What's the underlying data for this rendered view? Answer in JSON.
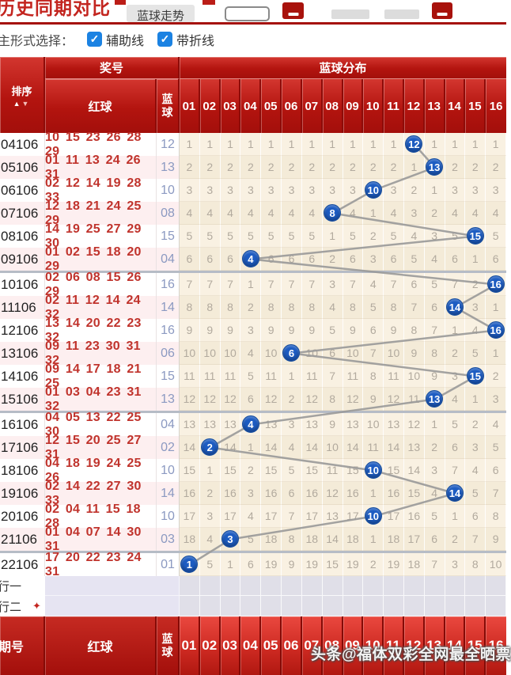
{
  "topbar": {
    "title": "历史同期对比",
    "dropdown_label": "蓝球走势"
  },
  "controls": {
    "label": "主形式选择：",
    "check_mark": "✓",
    "option1": "辅助线",
    "option2": "带折线"
  },
  "table": {
    "sort_label": "排序",
    "sort_arrows": {
      "up": "▲",
      "down": "▼"
    },
    "group_prize": "奖号",
    "group_dist": "蓝球分布",
    "col_red": "红球",
    "col_blue_top": "蓝",
    "col_blue_bottom": "球",
    "ball_numbers": [
      "01",
      "02",
      "03",
      "04",
      "05",
      "06",
      "07",
      "08",
      "09",
      "10",
      "11",
      "12",
      "13",
      "14",
      "15",
      "16"
    ],
    "rows": [
      {
        "period": "04106",
        "reds": "10 15 23 26 28 29",
        "blue": "12",
        "ball_col": 12,
        "cells": [
          "1",
          "1",
          "1",
          "1",
          "1",
          "1",
          "1",
          "1",
          "1",
          "1",
          "1",
          "12",
          "1",
          "1",
          "1",
          "1"
        ]
      },
      {
        "period": "05106",
        "reds": "01 11 13 24 26 31",
        "blue": "13",
        "ball_col": 13,
        "cells": [
          "2",
          "2",
          "2",
          "2",
          "2",
          "2",
          "2",
          "2",
          "2",
          "2",
          "2",
          "1",
          "13",
          "2",
          "2",
          "2"
        ]
      },
      {
        "period": "06106",
        "reds": "02 12 14 19 28 33",
        "blue": "10",
        "ball_col": 10,
        "cells": [
          "3",
          "3",
          "3",
          "3",
          "3",
          "3",
          "3",
          "3",
          "3",
          "10",
          "3",
          "2",
          "1",
          "3",
          "3",
          "3"
        ]
      },
      {
        "period": "07106",
        "reds": "12 18 21 24 25 29",
        "blue": "08",
        "ball_col": 8,
        "cells": [
          "4",
          "4",
          "4",
          "4",
          "4",
          "4",
          "4",
          "8",
          "4",
          "1",
          "4",
          "3",
          "2",
          "4",
          "4",
          "4"
        ]
      },
      {
        "period": "08106",
        "reds": "14 19 25 27 29 30",
        "blue": "15",
        "ball_col": 15,
        "cells": [
          "5",
          "5",
          "5",
          "5",
          "5",
          "5",
          "5",
          "1",
          "5",
          "2",
          "5",
          "4",
          "3",
          "5",
          "15",
          "5"
        ]
      },
      {
        "period": "09106",
        "reds": "01 02 15 18 20 29",
        "blue": "04",
        "ball_col": 4,
        "cells": [
          "6",
          "6",
          "6",
          "4",
          "6",
          "6",
          "6",
          "2",
          "6",
          "3",
          "6",
          "5",
          "4",
          "6",
          "1",
          "6"
        ]
      },
      {
        "period": "10106",
        "reds": "02 06 08 15 26 29",
        "blue": "16",
        "ball_col": 16,
        "cells": [
          "7",
          "7",
          "7",
          "1",
          "7",
          "7",
          "7",
          "3",
          "7",
          "4",
          "7",
          "6",
          "5",
          "7",
          "2",
          "16"
        ]
      },
      {
        "period": "11106",
        "reds": "02 11 12 14 24 32",
        "blue": "14",
        "ball_col": 14,
        "cells": [
          "8",
          "8",
          "8",
          "2",
          "8",
          "8",
          "8",
          "4",
          "8",
          "5",
          "8",
          "7",
          "6",
          "14",
          "3",
          "1"
        ]
      },
      {
        "period": "12106",
        "reds": "13 14 20 22 23 32",
        "blue": "16",
        "ball_col": 16,
        "cells": [
          "9",
          "9",
          "9",
          "3",
          "9",
          "9",
          "9",
          "5",
          "9",
          "6",
          "9",
          "8",
          "7",
          "1",
          "4",
          "16"
        ]
      },
      {
        "period": "13106",
        "reds": "09 11 23 30 31 32",
        "blue": "06",
        "ball_col": 6,
        "cells": [
          "10",
          "10",
          "10",
          "4",
          "10",
          "6",
          "10",
          "6",
          "10",
          "7",
          "10",
          "9",
          "8",
          "2",
          "5",
          "1"
        ]
      },
      {
        "period": "14106",
        "reds": "09 14 17 18 21 25",
        "blue": "15",
        "ball_col": 15,
        "cells": [
          "11",
          "11",
          "11",
          "5",
          "11",
          "1",
          "11",
          "7",
          "11",
          "8",
          "11",
          "10",
          "9",
          "3",
          "15",
          "2"
        ]
      },
      {
        "period": "15106",
        "reds": "01 03 04 23 31 32",
        "blue": "13",
        "ball_col": 13,
        "cells": [
          "12",
          "12",
          "12",
          "6",
          "12",
          "2",
          "12",
          "8",
          "12",
          "9",
          "12",
          "11",
          "13",
          "4",
          "1",
          "3"
        ]
      },
      {
        "period": "16106",
        "reds": "04 05 13 22 25 30",
        "blue": "04",
        "ball_col": 4,
        "cells": [
          "13",
          "13",
          "13",
          "4",
          "13",
          "3",
          "13",
          "9",
          "13",
          "10",
          "13",
          "12",
          "1",
          "5",
          "2",
          "4"
        ]
      },
      {
        "period": "17106",
        "reds": "12 15 20 25 27 31",
        "blue": "02",
        "ball_col": 2,
        "cells": [
          "14",
          "2",
          "14",
          "1",
          "14",
          "4",
          "14",
          "10",
          "14",
          "11",
          "14",
          "13",
          "2",
          "6",
          "3",
          "5"
        ]
      },
      {
        "period": "18106",
        "reds": "04 18 19 24 25 26",
        "blue": "10",
        "ball_col": 10,
        "cells": [
          "15",
          "1",
          "15",
          "2",
          "15",
          "5",
          "15",
          "11",
          "15",
          "10",
          "15",
          "14",
          "3",
          "7",
          "4",
          "6"
        ]
      },
      {
        "period": "19106",
        "reds": "02 14 22 27 30 33",
        "blue": "14",
        "ball_col": 14,
        "cells": [
          "16",
          "2",
          "16",
          "3",
          "16",
          "6",
          "16",
          "12",
          "16",
          "1",
          "16",
          "15",
          "4",
          "14",
          "5",
          "7"
        ]
      },
      {
        "period": "20106",
        "reds": "02 04 11 15 18 28",
        "blue": "10",
        "ball_col": 10,
        "cells": [
          "17",
          "3",
          "17",
          "4",
          "17",
          "7",
          "17",
          "13",
          "17",
          "10",
          "17",
          "16",
          "5",
          "1",
          "6",
          "8"
        ]
      },
      {
        "period": "21106",
        "reds": "01 04 07 14 30 31",
        "blue": "03",
        "ball_col": 3,
        "cells": [
          "18",
          "4",
          "3",
          "5",
          "18",
          "8",
          "18",
          "14",
          "18",
          "1",
          "18",
          "17",
          "6",
          "2",
          "7",
          "9"
        ]
      },
      {
        "period": "22106",
        "reds": "17 20 22 23 24 31",
        "blue": "01",
        "ball_col": 1,
        "cells": [
          "1",
          "5",
          "1",
          "6",
          "19",
          "9",
          "19",
          "15",
          "19",
          "2",
          "19",
          "18",
          "7",
          "3",
          "8",
          "10"
        ]
      }
    ],
    "special_rows": [
      "行一",
      "行二"
    ],
    "special_row2_icon": "✦"
  },
  "footer": {
    "period_label": "期号",
    "red_label": "红球",
    "blue_top": "蓝",
    "blue_bottom": "球"
  },
  "watermark": "头条@福体双彩全网最全晒票",
  "colors": {
    "accent_red": "#a5120c",
    "header_red_top": "#d3362f",
    "header_red_bottom": "#a30f0b",
    "ball_blue": "#1d5cc2",
    "hit_cell_bg": "#cce0f5",
    "trend_line_grey": "#999999",
    "checkbox_blue": "#1b82e2",
    "pink_row": "#fdeff0",
    "cream_cell": "#f9f1e2",
    "group_separator": "#b6bcc6",
    "lavender_row": "#e6e4f2"
  }
}
